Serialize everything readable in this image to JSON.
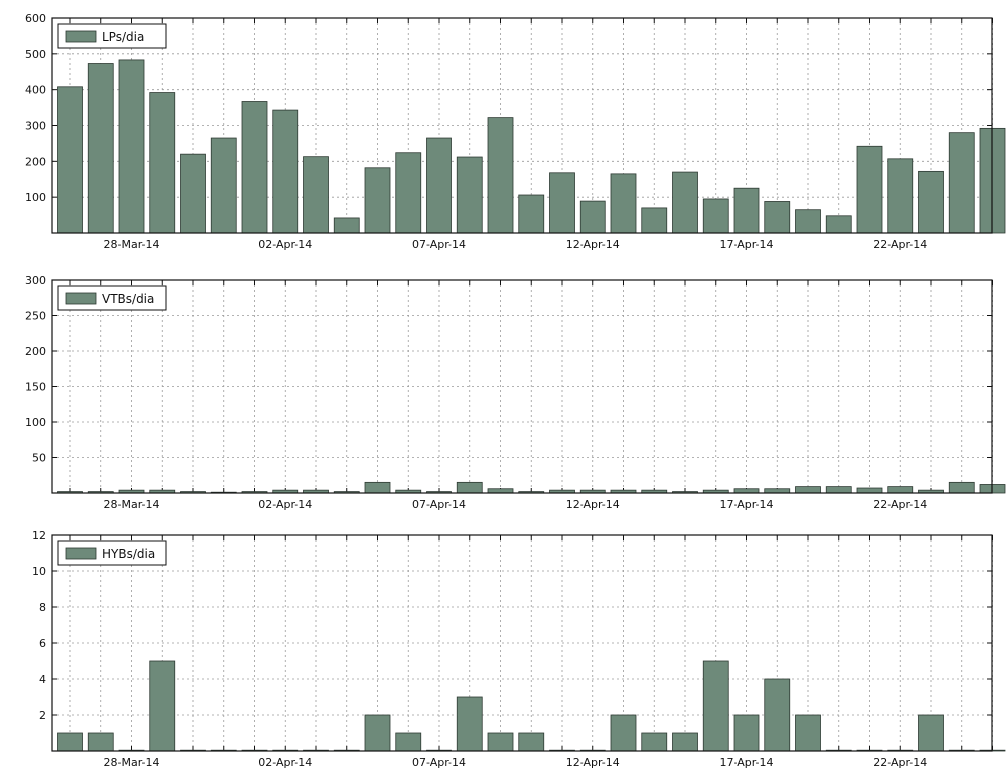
{
  "chart_data": [
    {
      "type": "bar",
      "legend": "LPs/dia",
      "legend_position": "top-left",
      "ylim": [
        0,
        600
      ],
      "yticks": [
        "100",
        "200",
        "300",
        "400",
        "500",
        "600"
      ],
      "grid": true,
      "bar_color": "#6e8a7a",
      "x_start": "2014-03-26",
      "xticks": [
        "28-Mar-14",
        "02-Apr-14",
        "07-Apr-14",
        "12-Apr-14",
        "17-Apr-14",
        "22-Apr-14"
      ],
      "values": [
        408,
        473,
        483,
        392,
        220,
        265,
        367,
        343,
        213,
        42,
        182,
        224,
        265,
        212,
        322,
        106,
        168,
        89,
        165,
        70,
        170,
        95,
        125,
        88,
        65,
        48,
        242,
        207,
        172,
        280,
        292
      ]
    },
    {
      "type": "bar",
      "legend": "VTBs/dia",
      "legend_position": "top-left",
      "ylim": [
        0,
        300
      ],
      "yticks": [
        "50",
        "100",
        "150",
        "200",
        "250",
        "300"
      ],
      "grid": true,
      "bar_color": "#6e8a7a",
      "x_start": "2014-03-26",
      "xticks": [
        "28-Mar-14",
        "02-Apr-14",
        "07-Apr-14",
        "12-Apr-14",
        "17-Apr-14",
        "22-Apr-14"
      ],
      "values": [
        2,
        2,
        4,
        4,
        2,
        0,
        2,
        4,
        4,
        2,
        15,
        4,
        2,
        15,
        6,
        2,
        4,
        4,
        4,
        4,
        2,
        4,
        6,
        6,
        9,
        9,
        7,
        9,
        4,
        15,
        12
      ]
    },
    {
      "type": "bar",
      "legend": "HYBs/dia",
      "legend_position": "top-left",
      "ylim": [
        0,
        12
      ],
      "yticks": [
        "2",
        "4",
        "6",
        "8",
        "10",
        "12"
      ],
      "grid": true,
      "bar_color": "#6e8a7a",
      "x_start": "2014-03-26",
      "xticks": [
        "28-Mar-14",
        "02-Apr-14",
        "07-Apr-14",
        "12-Apr-14",
        "17-Apr-14",
        "22-Apr-14"
      ],
      "values": [
        1,
        1,
        0,
        5,
        0,
        0,
        0,
        0,
        0,
        0,
        2,
        1,
        0,
        3,
        1,
        1,
        0,
        0,
        2,
        1,
        1,
        5,
        2,
        4,
        2,
        0,
        0,
        0,
        2,
        0,
        0
      ]
    }
  ]
}
